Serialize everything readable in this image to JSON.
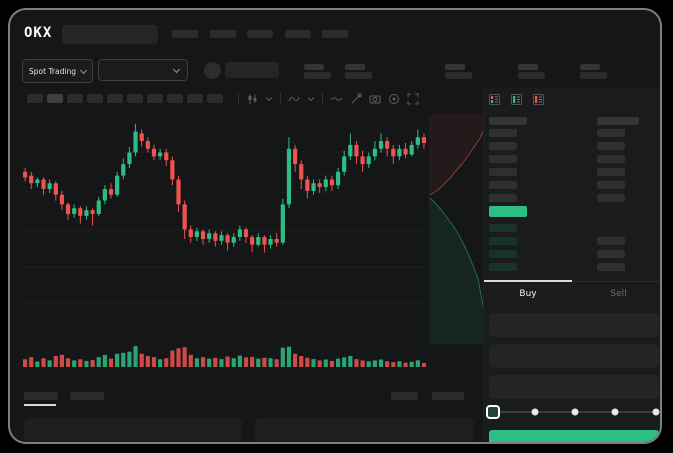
{
  "app": {
    "logo_text": "OKX"
  },
  "ticker": {
    "market_selector_label": "Spot Trading"
  },
  "trade_panel": {
    "tabs": [
      {
        "label": "Buy",
        "active": true
      },
      {
        "label": "Sell",
        "active": false
      }
    ],
    "input_slots": 3,
    "submit_color": "#2ebd85"
  },
  "slider": {
    "stops": 5,
    "active_stop": 0
  },
  "colors": {
    "up": "#2ebd85",
    "down": "#ef5350",
    "last_price": "#2ebd85",
    "bid_tint": "#173527"
  },
  "placeholders": {
    "header_nav_slots": 5,
    "ticker_stat_groups": 5,
    "timeframe_slots": 10,
    "selected_timeframe_index": 1,
    "bottom_tab_slots": 2,
    "bottom_right_slots": 2,
    "bottom_panels": 2
  },
  "order_book": {
    "view_icons": [
      "orderbook-combined-icon",
      "orderbook-bids-icon",
      "orderbook-asks-icon"
    ],
    "ask_rows": [
      {
        "r": true
      },
      {
        "r": true
      },
      {
        "r": true
      },
      {
        "r": true
      },
      {
        "r": true
      },
      {
        "r": true
      }
    ],
    "bid_rows": [
      {
        "r": false
      },
      {
        "r": true
      },
      {
        "r": true
      },
      {
        "r": true
      }
    ],
    "last_price_bar": "green"
  },
  "chart_data": {
    "type": "candlestick",
    "price_scale": [
      0,
      100
    ],
    "ohlc_order": "o,h,l,c",
    "grid": true,
    "up_color": "#2ebd85",
    "down_color": "#ef5350",
    "candles": [
      [
        72,
        74,
        67,
        69
      ],
      [
        70,
        72,
        63,
        66
      ],
      [
        66,
        69,
        64,
        68
      ],
      [
        68,
        69,
        60,
        63
      ],
      [
        63,
        68,
        61,
        66
      ],
      [
        66,
        67,
        57,
        60
      ],
      [
        60,
        62,
        52,
        55
      ],
      [
        55,
        56,
        47,
        50
      ],
      [
        50,
        55,
        48,
        53
      ],
      [
        53,
        54,
        45,
        49
      ],
      [
        49,
        54,
        47,
        52
      ],
      [
        52,
        53,
        44,
        50
      ],
      [
        50,
        59,
        49,
        57
      ],
      [
        57,
        65,
        55,
        63
      ],
      [
        63,
        66,
        58,
        60
      ],
      [
        60,
        72,
        59,
        70
      ],
      [
        70,
        79,
        68,
        76
      ],
      [
        76,
        85,
        74,
        82
      ],
      [
        82,
        97,
        80,
        93
      ],
      [
        92,
        94,
        85,
        88
      ],
      [
        88,
        90,
        82,
        84
      ],
      [
        84,
        86,
        78,
        80
      ],
      [
        80,
        84,
        78,
        82
      ],
      [
        82,
        84,
        75,
        78
      ],
      [
        78,
        80,
        65,
        68
      ],
      [
        68,
        70,
        51,
        55
      ],
      [
        55,
        57,
        37,
        42
      ],
      [
        42,
        44,
        35,
        38
      ],
      [
        38,
        43,
        36,
        41
      ],
      [
        41,
        42,
        34,
        37
      ],
      [
        37,
        42,
        35,
        40
      ],
      [
        40,
        41,
        33,
        36
      ],
      [
        36,
        41,
        34,
        39
      ],
      [
        39,
        40,
        31,
        35
      ],
      [
        35,
        40,
        33,
        38
      ],
      [
        38,
        44,
        36,
        42
      ],
      [
        42,
        43,
        35,
        38
      ],
      [
        38,
        39,
        30,
        34
      ],
      [
        34,
        40,
        33,
        38
      ],
      [
        38,
        39,
        30,
        34
      ],
      [
        34,
        39,
        32,
        37
      ],
      [
        37,
        40,
        33,
        35
      ],
      [
        35,
        58,
        34,
        55
      ],
      [
        55,
        90,
        53,
        84
      ],
      [
        84,
        86,
        72,
        76
      ],
      [
        76,
        78,
        63,
        68
      ],
      [
        68,
        70,
        58,
        62
      ],
      [
        62,
        68,
        60,
        66
      ],
      [
        66,
        68,
        61,
        64
      ],
      [
        64,
        70,
        62,
        68
      ],
      [
        68,
        70,
        62,
        65
      ],
      [
        65,
        74,
        63,
        72
      ],
      [
        72,
        83,
        70,
        80
      ],
      [
        80,
        92,
        78,
        86
      ],
      [
        86,
        88,
        76,
        80
      ],
      [
        80,
        83,
        72,
        76
      ],
      [
        76,
        82,
        74,
        80
      ],
      [
        80,
        88,
        78,
        84
      ],
      [
        84,
        92,
        82,
        88
      ],
      [
        88,
        90,
        80,
        84
      ],
      [
        84,
        86,
        76,
        80
      ],
      [
        80,
        86,
        78,
        84
      ],
      [
        84,
        87,
        79,
        81
      ],
      [
        81,
        88,
        80,
        86
      ],
      [
        86,
        94,
        84,
        90
      ],
      [
        90,
        92,
        84,
        87
      ]
    ],
    "volumes": [
      35,
      45,
      25,
      40,
      30,
      50,
      55,
      40,
      30,
      35,
      28,
      32,
      45,
      55,
      38,
      60,
      65,
      70,
      95,
      60,
      50,
      45,
      35,
      40,
      75,
      85,
      90,
      55,
      40,
      45,
      38,
      42,
      36,
      48,
      40,
      52,
      44,
      46,
      38,
      42,
      40,
      35,
      88,
      92,
      60,
      50,
      42,
      36,
      30,
      34,
      28,
      38,
      44,
      50,
      36,
      30,
      26,
      30,
      34,
      26,
      22,
      26,
      20,
      24,
      30,
      18
    ],
    "depth_preview": {
      "asks": [
        [
          0,
          81
        ],
        [
          8,
          76
        ],
        [
          14,
          70
        ],
        [
          20,
          64
        ],
        [
          26,
          57
        ],
        [
          32,
          50
        ],
        [
          38,
          42
        ],
        [
          44,
          33
        ],
        [
          50,
          24
        ],
        [
          54,
          16
        ]
      ],
      "bids": [
        [
          0,
          84
        ],
        [
          6,
          90
        ],
        [
          12,
          97
        ],
        [
          18,
          105
        ],
        [
          24,
          113
        ],
        [
          30,
          123
        ],
        [
          36,
          135
        ],
        [
          42,
          149
        ],
        [
          48,
          165
        ],
        [
          54,
          196
        ]
      ]
    }
  }
}
